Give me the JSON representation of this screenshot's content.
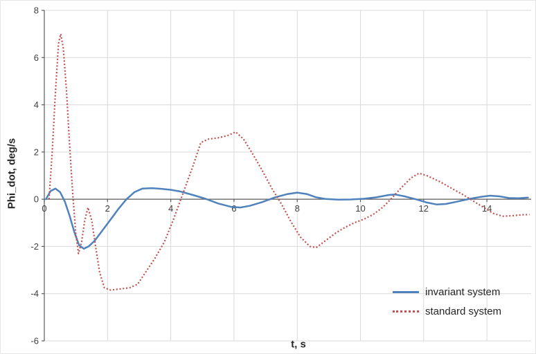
{
  "chart_data": {
    "type": "line",
    "title": "",
    "xlabel": "t, s",
    "ylabel": "Phi_dot, deg/s",
    "xlim": [
      0,
      15.4
    ],
    "ylim": [
      -6,
      8
    ],
    "xticks": [
      0,
      2,
      4,
      6,
      8,
      10,
      12,
      14
    ],
    "yticks": [
      -6,
      -4,
      -2,
      0,
      2,
      4,
      6,
      8
    ],
    "grid": true,
    "legend_position": "bottom-right",
    "colors": {
      "grid": "#d9d9d9",
      "axis": "#595959",
      "tick_text": "#3f3f3f",
      "title_text": "#262626"
    },
    "series": [
      {
        "name": "invariant system",
        "color": "#4f81bd",
        "line_style": "solid",
        "line_width": 2.5,
        "points": [
          [
            0.05,
            0.0
          ],
          [
            0.2,
            0.35
          ],
          [
            0.35,
            0.45
          ],
          [
            0.5,
            0.3
          ],
          [
            0.65,
            -0.1
          ],
          [
            0.8,
            -0.7
          ],
          [
            0.95,
            -1.4
          ],
          [
            1.1,
            -1.95
          ],
          [
            1.25,
            -2.1
          ],
          [
            1.4,
            -2.0
          ],
          [
            1.6,
            -1.75
          ],
          [
            1.85,
            -1.3
          ],
          [
            2.1,
            -0.85
          ],
          [
            2.35,
            -0.4
          ],
          [
            2.6,
            0.0
          ],
          [
            2.85,
            0.3
          ],
          [
            3.1,
            0.45
          ],
          [
            3.4,
            0.47
          ],
          [
            3.7,
            0.44
          ],
          [
            4.0,
            0.4
          ],
          [
            4.3,
            0.33
          ],
          [
            4.7,
            0.18
          ],
          [
            5.1,
            0.02
          ],
          [
            5.5,
            -0.18
          ],
          [
            5.9,
            -0.32
          ],
          [
            6.2,
            -0.35
          ],
          [
            6.5,
            -0.28
          ],
          [
            6.9,
            -0.12
          ],
          [
            7.3,
            0.08
          ],
          [
            7.7,
            0.22
          ],
          [
            8.0,
            0.28
          ],
          [
            8.3,
            0.22
          ],
          [
            8.6,
            0.08
          ],
          [
            8.9,
            0.01
          ],
          [
            9.3,
            -0.02
          ],
          [
            9.7,
            -0.01
          ],
          [
            10.1,
            0.02
          ],
          [
            10.5,
            0.08
          ],
          [
            10.9,
            0.18
          ],
          [
            11.1,
            0.2
          ],
          [
            11.4,
            0.12
          ],
          [
            11.8,
            -0.02
          ],
          [
            12.1,
            -0.14
          ],
          [
            12.4,
            -0.22
          ],
          [
            12.7,
            -0.2
          ],
          [
            13.0,
            -0.12
          ],
          [
            13.4,
            0.0
          ],
          [
            13.8,
            0.1
          ],
          [
            14.1,
            0.15
          ],
          [
            14.4,
            0.12
          ],
          [
            14.7,
            0.05
          ],
          [
            15.0,
            0.04
          ],
          [
            15.3,
            0.07
          ]
        ]
      },
      {
        "name": "standard system",
        "color": "#c0504d",
        "line_style": "dotted",
        "line_width": 2.2,
        "points": [
          [
            0.15,
            0.0
          ],
          [
            0.25,
            2.0
          ],
          [
            0.35,
            4.5
          ],
          [
            0.45,
            6.6
          ],
          [
            0.52,
            7.0
          ],
          [
            0.6,
            6.4
          ],
          [
            0.7,
            4.6
          ],
          [
            0.8,
            2.3
          ],
          [
            0.9,
            0.2
          ],
          [
            1.0,
            -1.5
          ],
          [
            1.08,
            -2.3
          ],
          [
            1.18,
            -1.8
          ],
          [
            1.28,
            -0.9
          ],
          [
            1.38,
            -0.35
          ],
          [
            1.5,
            -0.9
          ],
          [
            1.62,
            -2.0
          ],
          [
            1.75,
            -3.1
          ],
          [
            1.9,
            -3.75
          ],
          [
            2.1,
            -3.85
          ],
          [
            2.4,
            -3.8
          ],
          [
            2.7,
            -3.75
          ],
          [
            2.95,
            -3.6
          ],
          [
            3.2,
            -3.1
          ],
          [
            3.5,
            -2.5
          ],
          [
            3.8,
            -1.8
          ],
          [
            4.1,
            -0.8
          ],
          [
            4.4,
            0.3
          ],
          [
            4.7,
            1.4
          ],
          [
            4.95,
            2.4
          ],
          [
            5.2,
            2.55
          ],
          [
            5.5,
            2.6
          ],
          [
            5.8,
            2.7
          ],
          [
            6.05,
            2.85
          ],
          [
            6.3,
            2.55
          ],
          [
            6.6,
            1.9
          ],
          [
            6.9,
            1.2
          ],
          [
            7.2,
            0.45
          ],
          [
            7.5,
            -0.2
          ],
          [
            7.8,
            -0.95
          ],
          [
            8.1,
            -1.6
          ],
          [
            8.4,
            -2.0
          ],
          [
            8.6,
            -2.05
          ],
          [
            8.9,
            -1.75
          ],
          [
            9.2,
            -1.45
          ],
          [
            9.5,
            -1.2
          ],
          [
            9.8,
            -1.0
          ],
          [
            10.1,
            -0.85
          ],
          [
            10.4,
            -0.65
          ],
          [
            10.7,
            -0.35
          ],
          [
            11.0,
            0.05
          ],
          [
            11.3,
            0.5
          ],
          [
            11.6,
            0.9
          ],
          [
            11.85,
            1.1
          ],
          [
            12.1,
            1.0
          ],
          [
            12.5,
            0.75
          ],
          [
            12.9,
            0.45
          ],
          [
            13.3,
            0.15
          ],
          [
            13.6,
            -0.1
          ],
          [
            13.9,
            -0.35
          ],
          [
            14.2,
            -0.6
          ],
          [
            14.5,
            -0.72
          ],
          [
            14.8,
            -0.7
          ],
          [
            15.1,
            -0.66
          ],
          [
            15.35,
            -0.65
          ]
        ]
      }
    ]
  }
}
